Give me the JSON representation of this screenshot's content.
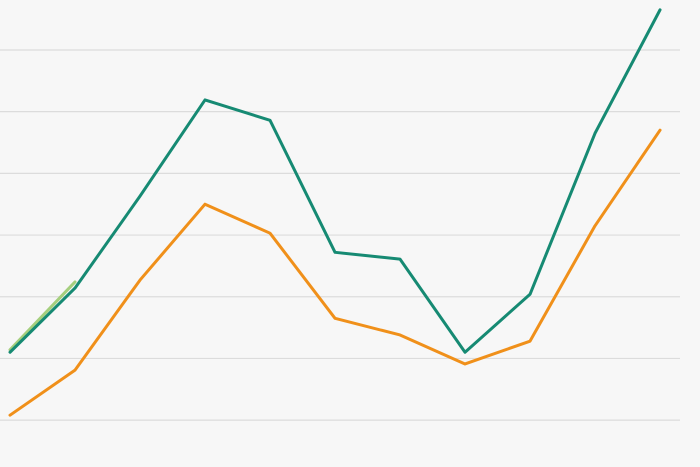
{
  "chart_data": {
    "type": "line",
    "x": [
      0,
      1,
      2,
      3,
      4,
      5,
      6,
      7,
      8,
      9,
      10
    ],
    "xlim": [
      -0.154,
      10.615
    ],
    "ylim": [
      -0.76,
      6.81
    ],
    "yticks": [
      0,
      1,
      2,
      3,
      4,
      5,
      6
    ],
    "grid": true,
    "series": [
      {
        "color": "#a5cf7e",
        "values": [
          1.14,
          2.24,
          null,
          null,
          null,
          null,
          null,
          null,
          null,
          null,
          null
        ]
      },
      {
        "color": "#168a73",
        "values": [
          1.1,
          2.14,
          3.63,
          5.19,
          4.86,
          2.72,
          2.61,
          1.1,
          2.04,
          4.65,
          6.65
        ]
      },
      {
        "color": "#f0901a",
        "values": [
          0.08,
          0.81,
          2.27,
          3.5,
          3.03,
          1.65,
          1.38,
          0.91,
          1.28,
          3.15,
          4.7
        ]
      }
    ]
  }
}
